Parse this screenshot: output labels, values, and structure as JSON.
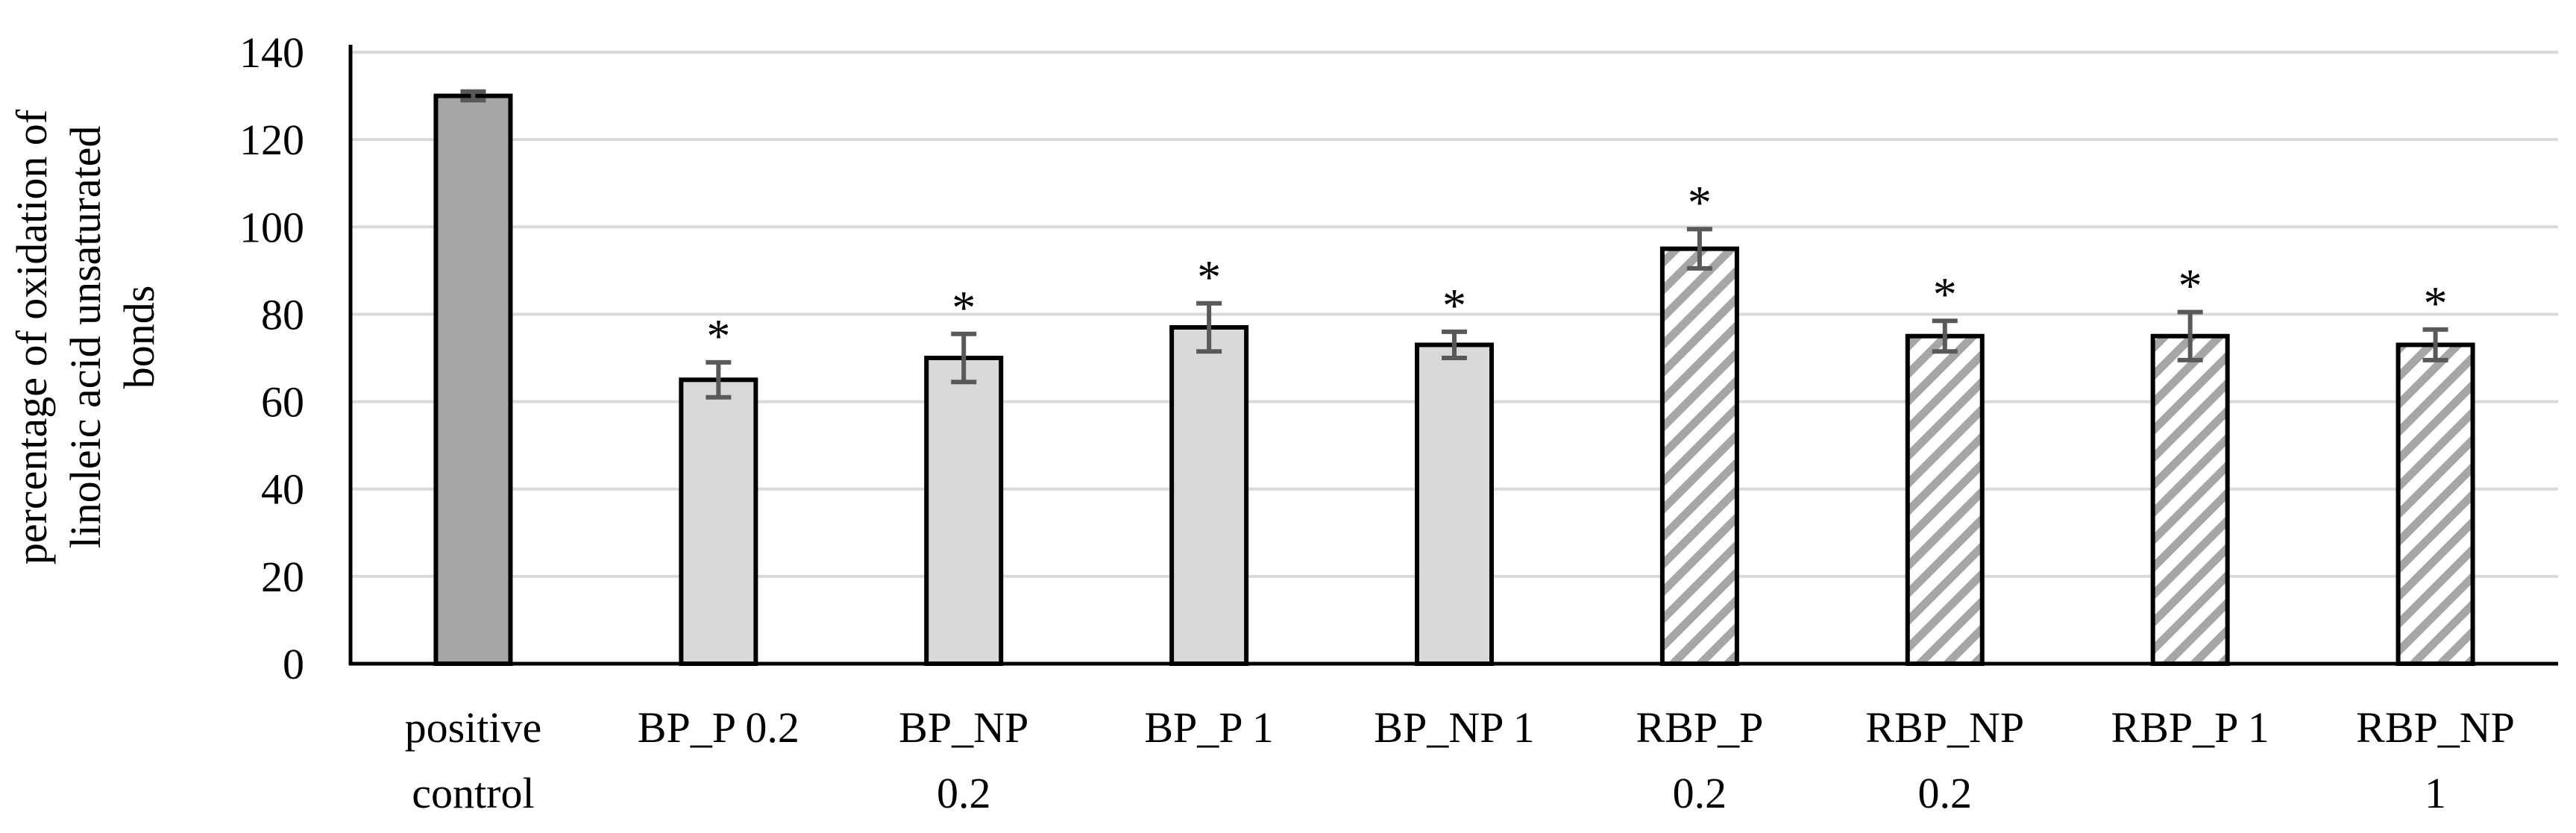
{
  "chart_data": {
    "type": "bar",
    "title": "",
    "xlabel": "",
    "ylabel": [
      "percentage of oxidation of",
      "linoleic acid unsaturated",
      "bonds"
    ],
    "ylim": [
      0,
      140
    ],
    "yticks": [
      0,
      20,
      40,
      60,
      80,
      100,
      120,
      140
    ],
    "grid": true,
    "legend": "none",
    "categories": [
      [
        "positive",
        "control"
      ],
      [
        "BP_P 0.2"
      ],
      [
        "BP_NP",
        "0.2"
      ],
      [
        "BP_P 1"
      ],
      [
        "BP_NP 1"
      ],
      [
        "RBP_P",
        "0.2"
      ],
      [
        "RBP_NP",
        "0.2"
      ],
      [
        "RBP_P 1"
      ],
      [
        "RBP_NP",
        "1"
      ]
    ],
    "values": [
      130,
      65,
      70,
      77,
      73,
      95,
      75,
      75,
      73
    ],
    "errors": [
      1,
      4,
      5.5,
      5.5,
      3,
      4.5,
      3.5,
      5.5,
      3.5
    ],
    "significance": [
      "",
      "*",
      "*",
      "*",
      "*",
      "*",
      "*",
      "*",
      "*"
    ],
    "fills": [
      "dark-gray",
      "light-gray",
      "light-gray",
      "light-gray",
      "light-gray",
      "hatched",
      "hatched",
      "hatched",
      "hatched"
    ],
    "colors": {
      "dark_gray": "#A6A6A6",
      "light_gray": "#D9D9D9",
      "hatch": "#A6A6A6",
      "grid": "#D9D9D9",
      "error_bar": "#595959",
      "outline": "#000000"
    }
  }
}
